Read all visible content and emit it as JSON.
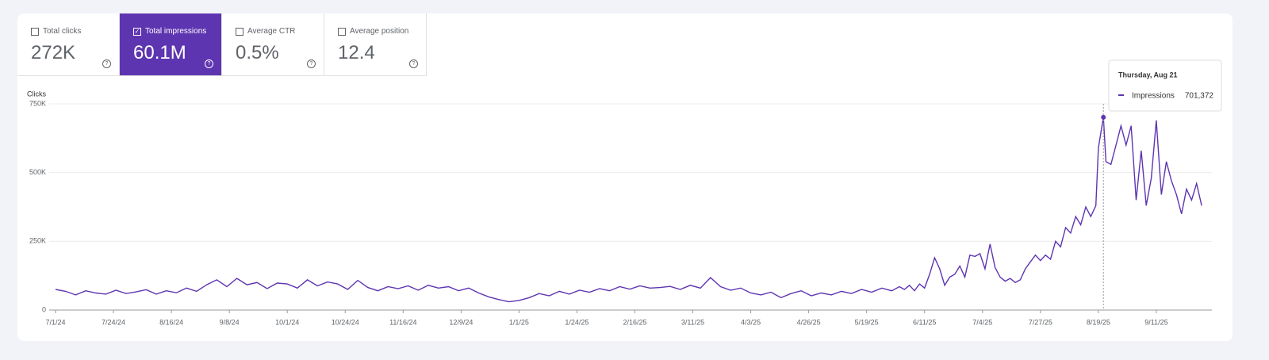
{
  "tabs": [
    {
      "label": "Total clicks",
      "value": "272K",
      "selected": false
    },
    {
      "label": "Total impressions",
      "value": "60.1M",
      "selected": true
    },
    {
      "label": "Average CTR",
      "value": "0.5%",
      "selected": false
    },
    {
      "label": "Average position",
      "value": "12.4",
      "selected": false
    }
  ],
  "tooltip": {
    "title": "Thursday, Aug 21"
  },
  "chart_data": {
    "type": "line",
    "y_label": "Clicks",
    "x": [
      "7/1/24",
      "7/5/24",
      "7/9/24",
      "7/13/24",
      "7/17/24",
      "7/21/24",
      "7/25/24",
      "7/29/24",
      "8/2/24",
      "8/6/24",
      "8/10/24",
      "8/14/24",
      "8/18/24",
      "8/22/24",
      "8/26/24",
      "8/30/24",
      "9/3/24",
      "9/7/24",
      "9/11/24",
      "9/15/24",
      "9/19/24",
      "9/23/24",
      "9/27/24",
      "10/1/24",
      "10/5/24",
      "10/9/24",
      "10/13/24",
      "10/17/24",
      "10/21/24",
      "10/25/24",
      "10/29/24",
      "11/2/24",
      "11/6/24",
      "11/10/24",
      "11/14/24",
      "11/18/24",
      "11/22/24",
      "11/26/24",
      "11/30/24",
      "12/4/24",
      "12/8/24",
      "12/12/24",
      "12/16/24",
      "12/20/24",
      "12/24/24",
      "12/28/24",
      "1/1/25",
      "1/5/25",
      "1/9/25",
      "1/13/25",
      "1/17/25",
      "1/21/25",
      "1/25/25",
      "1/29/25",
      "2/2/25",
      "2/6/25",
      "2/10/25",
      "2/14/25",
      "2/18/25",
      "2/22/25",
      "2/26/25",
      "3/2/25",
      "3/6/25",
      "3/10/25",
      "3/14/25",
      "3/18/25",
      "3/22/25",
      "3/26/25",
      "3/30/25",
      "4/3/25",
      "4/7/25",
      "4/11/25",
      "4/15/25",
      "4/19/25",
      "4/23/25",
      "4/27/25",
      "5/1/25",
      "5/5/25",
      "5/9/25",
      "5/13/25",
      "5/17/25",
      "5/21/25",
      "5/25/25",
      "5/29/25",
      "6/1/25",
      "6/3/25",
      "6/5/25",
      "6/7/25",
      "6/9/25",
      "6/11/25",
      "6/13/25",
      "6/15/25",
      "6/17/25",
      "6/19/25",
      "6/21/25",
      "6/23/25",
      "6/25/25",
      "6/27/25",
      "6/29/25",
      "7/1/25",
      "7/3/25",
      "7/5/25",
      "7/7/25",
      "7/9/25",
      "7/11/25",
      "7/13/25",
      "7/15/25",
      "7/17/25",
      "7/19/25",
      "7/21/25",
      "7/23/25",
      "7/25/25",
      "7/27/25",
      "7/29/25",
      "7/31/25",
      "8/2/25",
      "8/4/25",
      "8/6/25",
      "8/8/25",
      "8/10/25",
      "8/12/25",
      "8/14/25",
      "8/16/25",
      "8/18/25",
      "8/19/25",
      "8/21/25",
      "8/22/25",
      "8/24/25",
      "8/26/25",
      "8/28/25",
      "8/30/25",
      "9/1/25",
      "9/3/25",
      "9/5/25",
      "9/7/25",
      "9/9/25",
      "9/11/25",
      "9/13/25",
      "9/15/25",
      "9/17/25",
      "9/19/25",
      "9/21/25",
      "9/23/25",
      "9/25/25",
      "9/27/25",
      "9/29/25"
    ],
    "series": [
      {
        "name": "Impressions",
        "color": "#5e35b1",
        "values": [
          75000,
          68000,
          55000,
          70000,
          62000,
          58000,
          72000,
          60000,
          66000,
          74000,
          58000,
          70000,
          63000,
          80000,
          68000,
          92000,
          110000,
          85000,
          115000,
          92000,
          100000,
          78000,
          98000,
          95000,
          80000,
          110000,
          88000,
          102000,
          95000,
          75000,
          108000,
          82000,
          70000,
          85000,
          78000,
          88000,
          72000,
          90000,
          80000,
          85000,
          70000,
          80000,
          62000,
          48000,
          38000,
          30000,
          35000,
          45000,
          60000,
          52000,
          68000,
          58000,
          72000,
          65000,
          78000,
          70000,
          85000,
          76000,
          88000,
          80000,
          82000,
          86000,
          75000,
          90000,
          80000,
          118000,
          85000,
          72000,
          80000,
          62000,
          55000,
          65000,
          45000,
          60000,
          70000,
          52000,
          62000,
          55000,
          68000,
          60000,
          75000,
          65000,
          80000,
          70000,
          85000,
          75000,
          90000,
          70000,
          95000,
          80000,
          130000,
          190000,
          150000,
          90000,
          120000,
          130000,
          160000,
          120000,
          200000,
          195000,
          205000,
          150000,
          240000,
          155000,
          120000,
          105000,
          115000,
          100000,
          110000,
          150000,
          175000,
          200000,
          180000,
          200000,
          185000,
          250000,
          230000,
          300000,
          280000,
          340000,
          310000,
          375000,
          340000,
          380000,
          590000,
          701372,
          540000,
          530000,
          600000,
          670000,
          600000,
          670000,
          400000,
          580000,
          380000,
          480000,
          690000,
          420000,
          540000,
          470000,
          420000,
          350000,
          440000,
          400000,
          460000,
          380000
        ],
        "value_labels": [
          null,
          null,
          null,
          null,
          null,
          null,
          null,
          null,
          null,
          null,
          null,
          null,
          null,
          null,
          null,
          null,
          null,
          null,
          null,
          null,
          null,
          null,
          null,
          null,
          null,
          null,
          null,
          null,
          null,
          null,
          null,
          null,
          null,
          null,
          null,
          null,
          null,
          null,
          null,
          null,
          null,
          null,
          null,
          null,
          null,
          null,
          null,
          null,
          null,
          null,
          null,
          null,
          null,
          null,
          null,
          null,
          null,
          null,
          null,
          null,
          null,
          null,
          null,
          null,
          null,
          null,
          null,
          null,
          null,
          null,
          null,
          null,
          null,
          null,
          null,
          null,
          null,
          null,
          null,
          null,
          null,
          null,
          null,
          null,
          null,
          null,
          null,
          null,
          null,
          null,
          null,
          null,
          null,
          null,
          null,
          null,
          null,
          null,
          null,
          null,
          null,
          null,
          null,
          null,
          null,
          null,
          null,
          null,
          null,
          null,
          null,
          null,
          null,
          null,
          null,
          null,
          null,
          null,
          null,
          null,
          null,
          null,
          null,
          null,
          null,
          "701,372",
          null,
          null,
          null,
          null,
          null,
          null,
          null,
          null,
          null,
          null,
          null,
          null,
          null,
          null,
          null,
          null,
          null,
          null,
          null,
          null
        ]
      }
    ],
    "ylim": [
      0,
      750000
    ],
    "yticks": [
      0,
      {
        "value": 250000,
        "label": "250K"
      },
      {
        "value": 500000,
        "label": "500K"
      },
      {
        "value": 750000,
        "label": "750K"
      }
    ],
    "grid": true,
    "xticks": [
      "7/1/24",
      "7/24/24",
      "8/16/24",
      "9/8/24",
      "10/1/24",
      "10/24/24",
      "11/16/24",
      "12/9/24",
      "1/1/25",
      "1/24/25",
      "2/16/25",
      "3/11/25",
      "4/3/25",
      "4/26/25",
      "5/19/25",
      "6/11/25",
      "7/4/25",
      "7/27/25",
      "8/19/25",
      "9/11/25"
    ]
  }
}
